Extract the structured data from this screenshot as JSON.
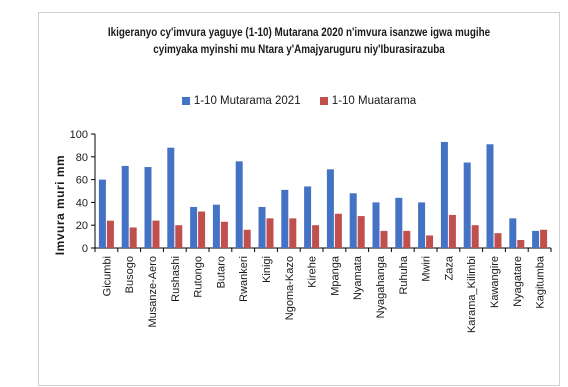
{
  "chart_data": {
    "type": "bar",
    "title_line1": "Ikigeranyo cy'imvura yaguye (1-10) Mutarana 2020 n'imvura isanzwe igwa mugihe",
    "title_line2": "cyimyaka myinshi mu Ntara y'Amajyaruguru niy'Iburasirazuba",
    "ylabel": "Imvura muri mm",
    "xlabel": "",
    "ylim": [
      0,
      100
    ],
    "yticks": [
      0,
      20,
      40,
      60,
      80,
      100
    ],
    "grid": false,
    "legend_position": "top",
    "categories": [
      "Gicumbi",
      "Busogo",
      "Musanze-Aero",
      "Rushashi",
      "Rutongo",
      "Butaro",
      "Rwankeri",
      "Kinigi",
      "Ngoma-Kazo",
      "Kirehe",
      "Mpanga",
      "Nyamata",
      "Nyagahanga",
      "Ruhuha",
      "Mwiri",
      "Zaza",
      "Karama_Kilimbi",
      "Kawangire",
      "Nyagatare",
      "Kagitumba"
    ],
    "series": [
      {
        "name": "1-10 Mutarama 2021",
        "color": "#4472C4",
        "values": [
          60,
          72,
          71,
          88,
          36,
          38,
          76,
          36,
          51,
          54,
          69,
          48,
          40,
          44,
          40,
          93,
          75,
          91,
          26,
          15
        ]
      },
      {
        "name": "1-10 Muatarama",
        "color": "#C0504D",
        "values": [
          24,
          18,
          24,
          20,
          32,
          23,
          16,
          26,
          26,
          20,
          30,
          28,
          15,
          15,
          11,
          29,
          20,
          13,
          7,
          16
        ]
      }
    ]
  }
}
